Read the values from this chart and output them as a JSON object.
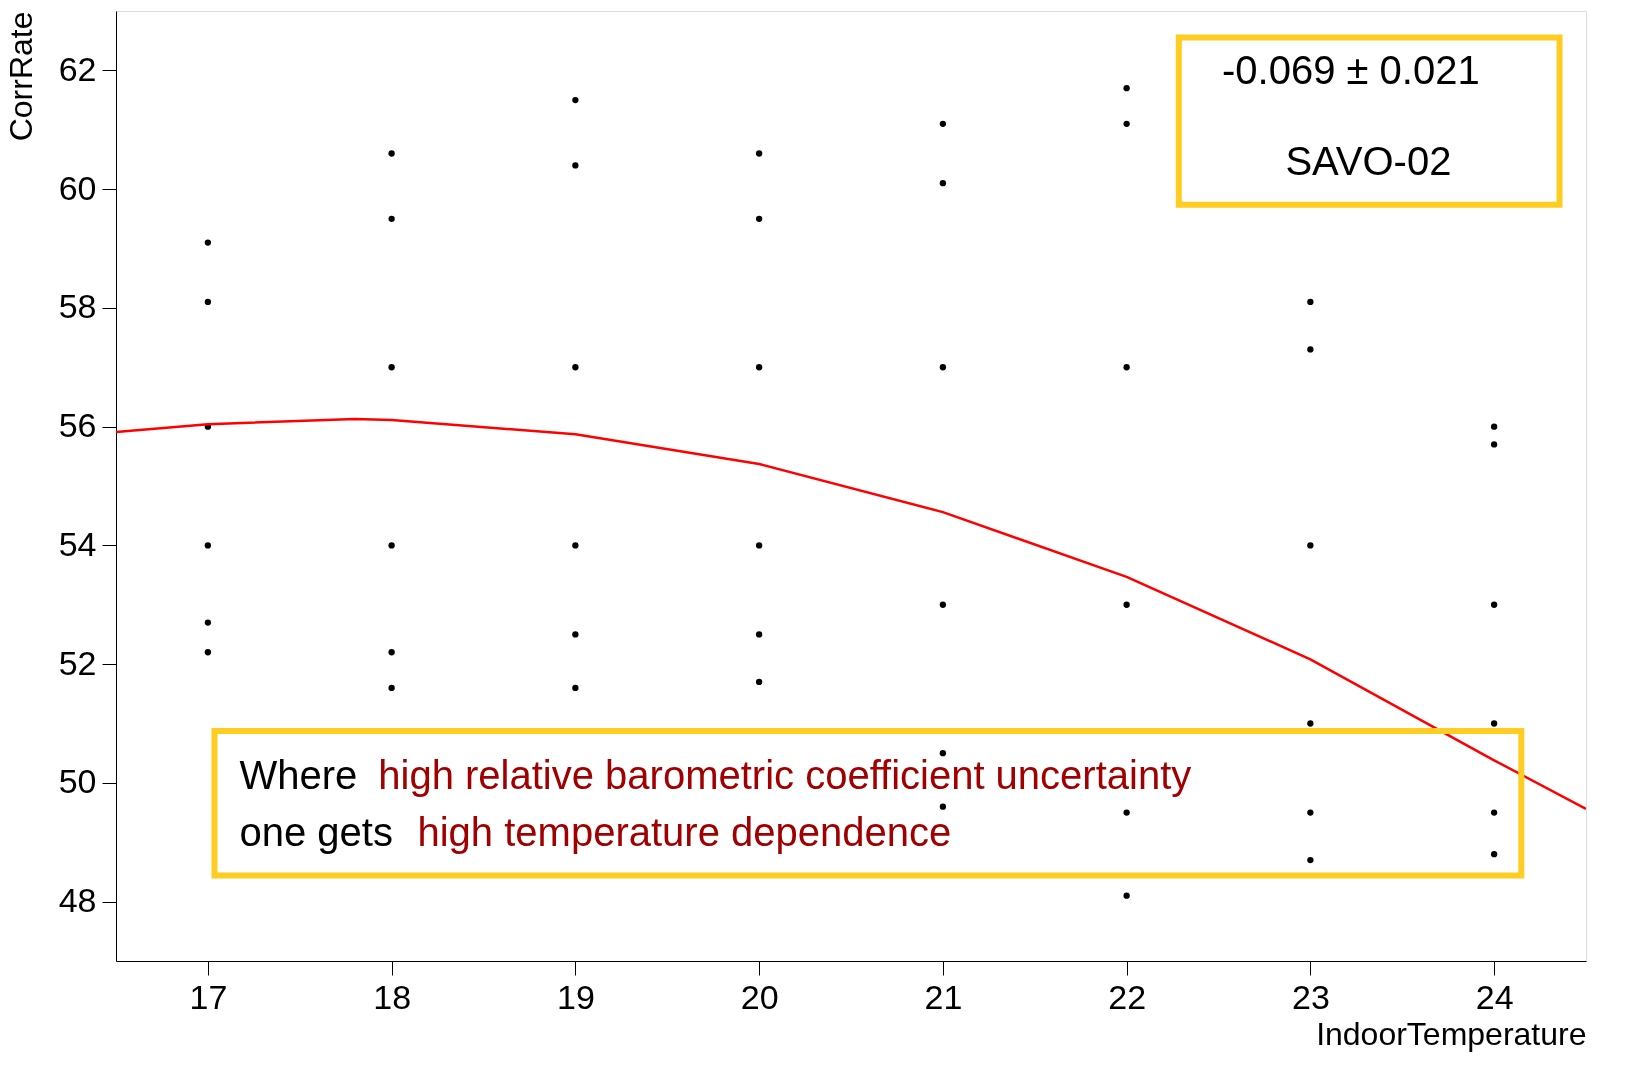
{
  "chart_data": {
    "type": "scatter",
    "xlabel": "IndoorTemperature",
    "ylabel": "CorrRate",
    "xlim": [
      16.5,
      24.5
    ],
    "ylim": [
      47,
      63
    ],
    "xticks": [
      17,
      18,
      19,
      20,
      21,
      22,
      23,
      24
    ],
    "yticks": [
      48,
      50,
      52,
      54,
      56,
      58,
      60,
      62
    ],
    "grid": false,
    "marker": "circle",
    "series": [
      {
        "color": "#000000",
        "x": [
          17,
          17,
          17,
          17,
          17,
          17,
          18,
          18,
          18,
          18,
          18,
          18,
          19,
          19,
          19,
          19,
          19,
          19,
          20,
          20,
          20,
          20,
          20,
          20,
          21,
          21,
          21,
          21,
          21,
          21,
          22,
          22,
          22,
          22,
          22,
          22,
          23,
          23,
          23,
          23,
          23,
          23,
          24,
          24,
          24,
          24,
          24,
          24
        ],
        "values": [
          59.1,
          58.1,
          56,
          54,
          52.7,
          52.2,
          60.6,
          59.5,
          57,
          54,
          52.2,
          51.6,
          61.5,
          60.4,
          57,
          54,
          52.5,
          51.6,
          60.6,
          59.5,
          57,
          54,
          52.5,
          51.7,
          61.1,
          60.1,
          57,
          53,
          50.5,
          49.6,
          61.7,
          61.1,
          57,
          53,
          49.5,
          48.1,
          58.1,
          57.3,
          54,
          51,
          49.5,
          48.7,
          56,
          55.7,
          53,
          51,
          49.5,
          48.8
        ]
      },
      {
        "type": "line",
        "color": "#ff0000",
        "marker": "none",
        "line_style": "solid",
        "x": [
          16.5,
          17,
          17.8,
          18,
          19,
          20,
          21,
          22,
          23,
          24,
          24.5
        ],
        "values": [
          55.91,
          56.04,
          56.13,
          56.11,
          55.87,
          55.37,
          54.56,
          53.47,
          52.08,
          50.38,
          49.56
        ]
      }
    ],
    "annotations": [
      "-0.069  ± 0.021",
      "SAVO-02",
      "Where ",
      "high relative barometric coefficient uncertainty",
      "one gets ",
      "high temperature dependence"
    ]
  }
}
